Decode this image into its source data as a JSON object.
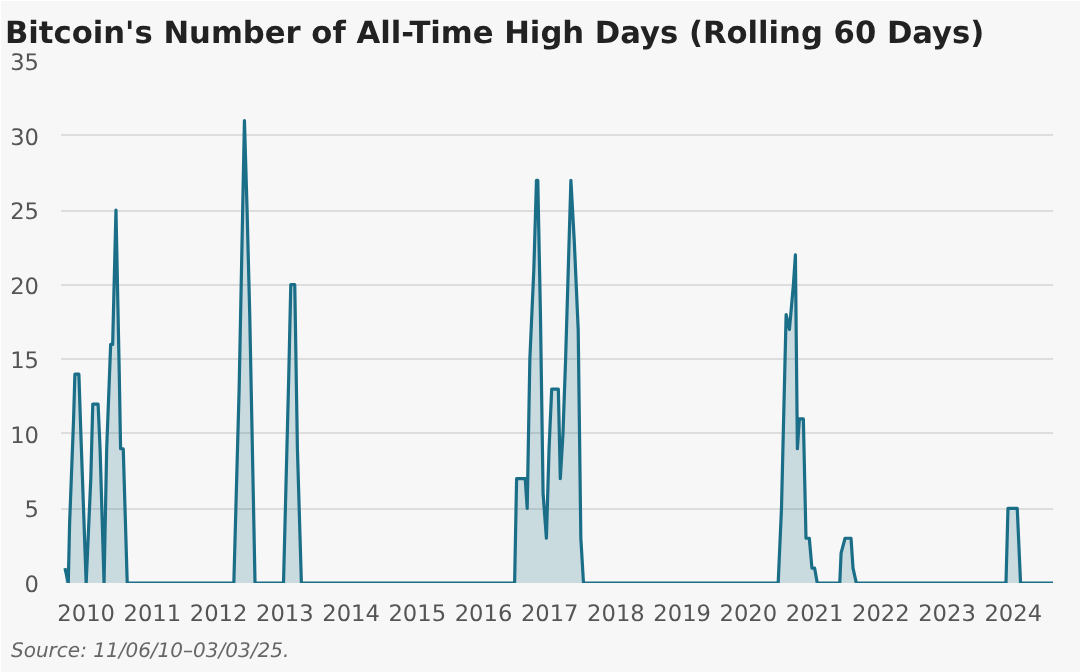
{
  "chart_data": {
    "type": "area",
    "title": "Bitcoin's Number of All-Time High Days (Rolling 60 Days)",
    "annotations": [
      "Source: 11/06/10–03/03/25."
    ],
    "x": [
      2009.68,
      2009.73,
      2009.75,
      2009.81,
      2009.83,
      2009.89,
      2009.92,
      2010.0,
      2010.07,
      2010.1,
      2010.18,
      2010.21,
      2010.27,
      2010.31,
      2010.37,
      2010.4,
      2010.45,
      2010.5,
      2010.52,
      2010.56,
      2010.62,
      2012.23,
      2012.31,
      2012.39,
      2012.43,
      2012.47,
      2012.55,
      2012.98,
      2013.06,
      2013.09,
      2013.15,
      2013.19,
      2013.25,
      2016.47,
      2016.5,
      2016.63,
      2016.66,
      2016.7,
      2016.76,
      2016.8,
      2016.82,
      2016.86,
      2016.9,
      2016.95,
      2016.99,
      2017.03,
      2017.13,
      2017.16,
      2017.2,
      2017.24,
      2017.32,
      2017.37,
      2017.43,
      2017.47,
      2017.51,
      2020.45,
      2020.5,
      2020.57,
      2020.62,
      2020.68,
      2020.71,
      2020.74,
      2020.77,
      2020.83,
      2020.87,
      2020.92,
      2020.96,
      2021.0,
      2021.04,
      2021.38,
      2021.4,
      2021.46,
      2021.55,
      2021.58,
      2021.63,
      2023.89,
      2023.92,
      2024.06,
      2024.11,
      2024.6
    ],
    "series": [
      {
        "color": "#1b6e87",
        "values": [
          1,
          0,
          4,
          11,
          14,
          14,
          10,
          0,
          7,
          12,
          12,
          9,
          0,
          9,
          16,
          16,
          25,
          14,
          9,
          9,
          0,
          0,
          13,
          31,
          25,
          18,
          0,
          0,
          14,
          20,
          20,
          9,
          0,
          0,
          7,
          7,
          5,
          15,
          21,
          27,
          27,
          18,
          6,
          3,
          9,
          13,
          13,
          7,
          10,
          15,
          27,
          23,
          17,
          3,
          0,
          0,
          5,
          18,
          17,
          20,
          22,
          9,
          11,
          11,
          3,
          3,
          1,
          1,
          0,
          0,
          2,
          3,
          3,
          1,
          0,
          0,
          5,
          5,
          0,
          0
        ]
      }
    ],
    "xlim": [
      2009.62,
      2024.6
    ],
    "xticks": [
      {
        "value": 2010,
        "label": "2010"
      },
      {
        "value": 2011,
        "label": "2011"
      },
      {
        "value": 2012,
        "label": "2012"
      },
      {
        "value": 2013,
        "label": "2013"
      },
      {
        "value": 2014,
        "label": "2014"
      },
      {
        "value": 2015,
        "label": "2015"
      },
      {
        "value": 2016,
        "label": "2016"
      },
      {
        "value": 2017,
        "label": "2017"
      },
      {
        "value": 2018,
        "label": "2018"
      },
      {
        "value": 2019,
        "label": "2019"
      },
      {
        "value": 2020,
        "label": "2020"
      },
      {
        "value": 2021,
        "label": "2021"
      },
      {
        "value": 2022,
        "label": "2022"
      },
      {
        "value": 2023,
        "label": "2023"
      },
      {
        "value": 2024,
        "label": "2024"
      }
    ],
    "ylim": [
      0,
      35
    ],
    "yticks": [
      0,
      5,
      10,
      15,
      20,
      25,
      30,
      35
    ],
    "grid": "y"
  }
}
